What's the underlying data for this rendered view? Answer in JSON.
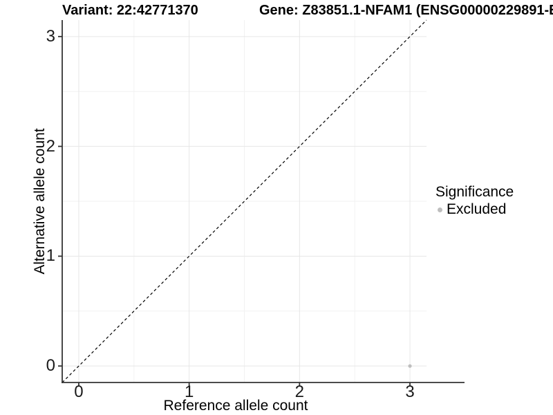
{
  "header": {
    "variant_title": "Variant: 22:42771370",
    "gene_title": "Gene: Z83851.1-NFAM1 (ENSG00000229891-E"
  },
  "chart_data": {
    "type": "scatter",
    "title": "Variant: 22:42771370",
    "xlabel": "Reference allele count",
    "ylabel": "Alternative allele count",
    "xlim": [
      -0.15,
      3.15
    ],
    "ylim": [
      -0.15,
      3.15
    ],
    "x_ticks": [
      "0",
      "1",
      "2",
      "3"
    ],
    "y_ticks": [
      "0",
      "1",
      "2",
      "3"
    ],
    "minor_ticks_x": [
      0.5,
      1.5,
      2.5
    ],
    "minor_ticks_y": [
      0.5,
      1.5,
      2.5
    ],
    "grid": "on",
    "reference_line": {
      "kind": "identity y=x",
      "from": [
        -0.15,
        -0.15
      ],
      "to": [
        3.15,
        3.15
      ],
      "style": "dashed",
      "color": "#000000"
    },
    "series": [
      {
        "name": "Excluded",
        "color": "#bebebe",
        "points": [
          {
            "x": 3,
            "y": 0
          }
        ]
      }
    ],
    "legend": {
      "title": "Significance",
      "position": "right",
      "entries": [
        {
          "label": "Excluded",
          "color": "#bebebe"
        }
      ]
    }
  },
  "colors": {
    "background": "#ffffff",
    "grid_major": "#e6e6e6",
    "grid_minor": "#f2f2f2",
    "axis_line": "#333333",
    "tick_text": "#1a1a1a",
    "point": "#bebebe"
  }
}
